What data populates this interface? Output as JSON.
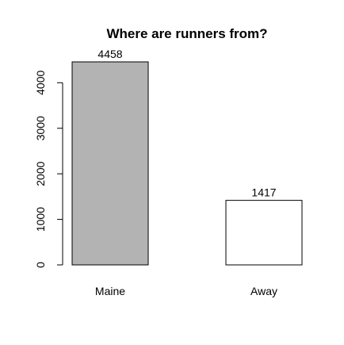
{
  "chart_data": {
    "type": "bar",
    "title": "Where are runners from?",
    "categories": [
      "Maine",
      "Away"
    ],
    "values": [
      4458,
      1417
    ],
    "data_labels": [
      "4458",
      "1417"
    ],
    "bar_colors": [
      "#b3b3b3",
      "#ffffff"
    ],
    "yticks": [
      0,
      1000,
      2000,
      3000,
      4000
    ],
    "ylim": [
      0,
      4458
    ],
    "xlabel": "",
    "ylabel": "",
    "grid": false
  }
}
